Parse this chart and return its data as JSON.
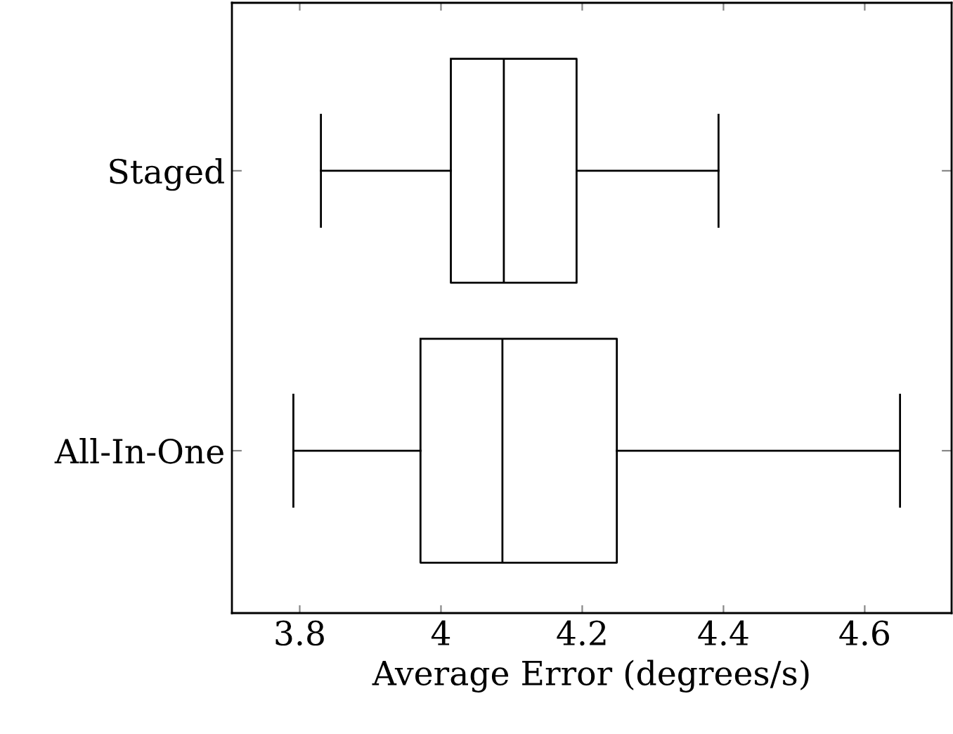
{
  "chart_data": {
    "type": "box",
    "orientation": "horizontal",
    "xlabel": "Average Error (degrees/s)",
    "categories": [
      "Staged",
      "All-In-One"
    ],
    "boxes": [
      {
        "low": 3.83,
        "q1": 4.014,
        "median": 4.089,
        "q3": 4.192,
        "high": 4.393
      },
      {
        "low": 3.791,
        "q1": 3.971,
        "median": 4.087,
        "q3": 4.249,
        "high": 4.65
      }
    ],
    "xlim": [
      3.704,
      4.723
    ],
    "xticks": [
      3.8,
      {
        "value": 4.0,
        "label": "4"
      },
      4.2,
      4.4,
      4.6
    ],
    "grid": false
  }
}
